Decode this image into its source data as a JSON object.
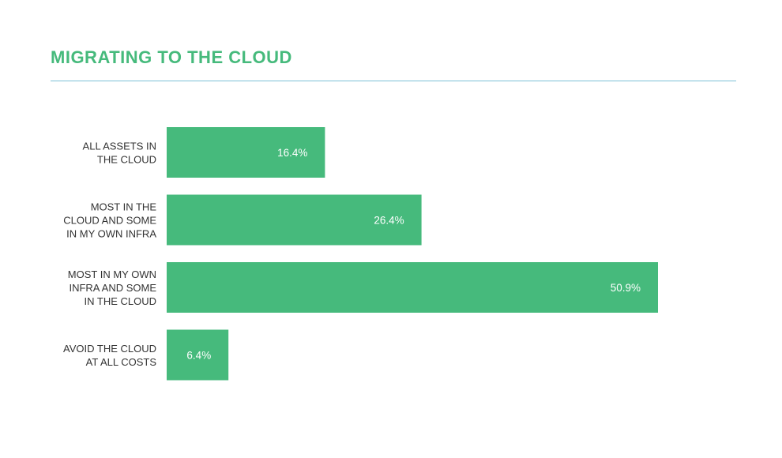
{
  "chart_data": {
    "type": "bar",
    "orientation": "horizontal",
    "title": "MIGRATING TO THE CLOUD",
    "categories": [
      [
        "ALL ASSETS IN",
        "THE CLOUD"
      ],
      [
        "MOST IN THE",
        "CLOUD AND SOME",
        "IN MY OWN INFRA"
      ],
      [
        "MOST IN MY OWN",
        "INFRA AND SOME",
        "IN THE CLOUD"
      ],
      [
        "AVOID THE CLOUD",
        "AT ALL COSTS"
      ]
    ],
    "values": [
      16.4,
      26.4,
      50.9,
      6.4
    ],
    "value_labels": [
      "16.4%",
      "26.4%",
      "50.9%",
      "6.4%"
    ],
    "xlim": [
      0,
      60
    ],
    "grid": false,
    "legend": "none",
    "bar_color": "#46ba7c"
  }
}
